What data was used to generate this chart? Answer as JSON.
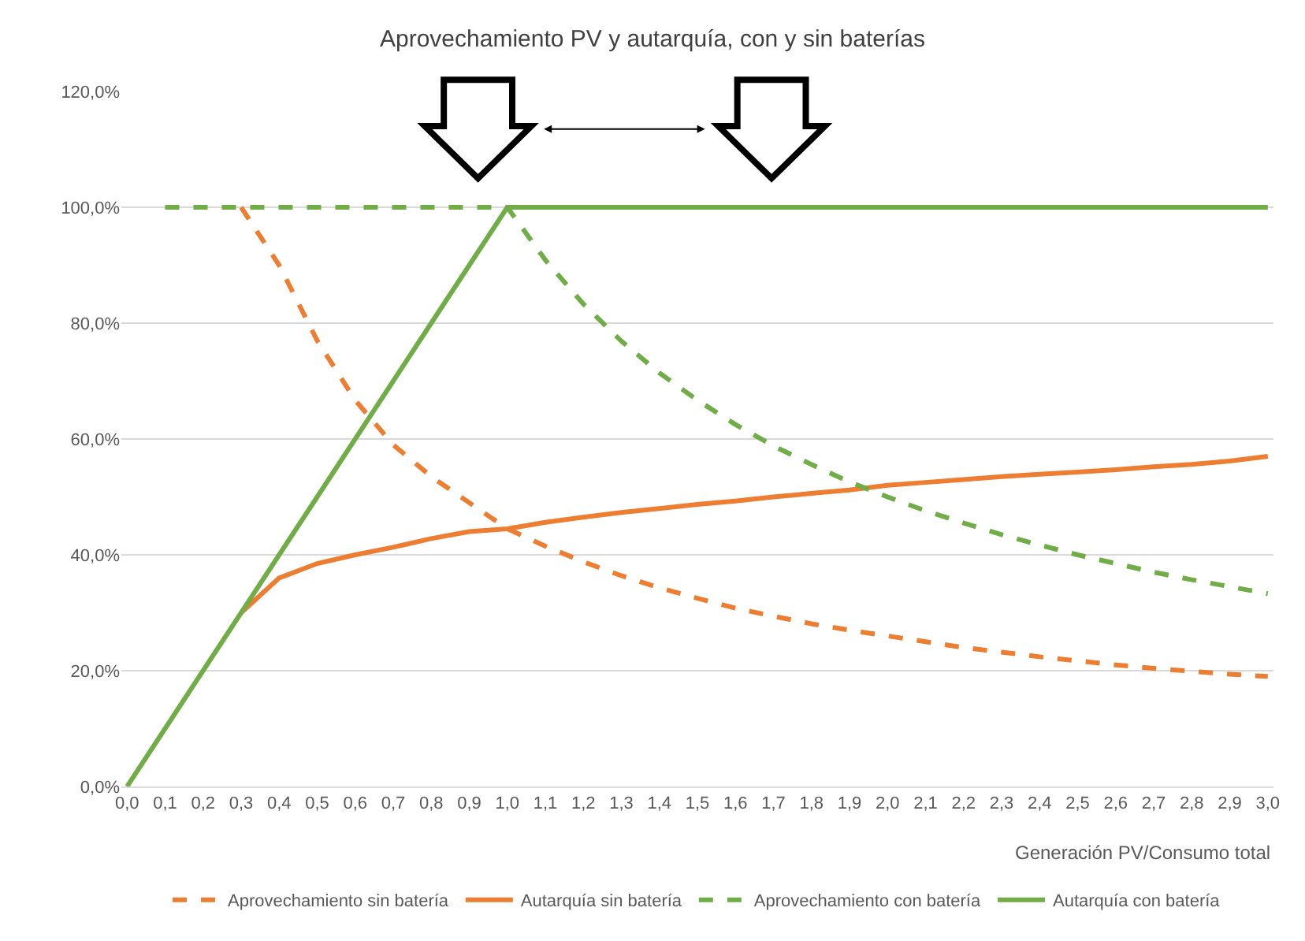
{
  "chart_data": {
    "type": "line",
    "title": "Aprovechamiento PV y autarquía, con y sin baterías",
    "xlabel": "Generación PV/Consumo total",
    "categories": [
      "0,0",
      "0,1",
      "0,2",
      "0,3",
      "0,4",
      "0,5",
      "0,6",
      "0,7",
      "0,8",
      "0,9",
      "1,0",
      "1,1",
      "1,2",
      "1,3",
      "1,4",
      "1,5",
      "1,6",
      "1,7",
      "1,8",
      "1,9",
      "2,0",
      "2,1",
      "2,2",
      "2,3",
      "2,4",
      "2,5",
      "2,6",
      "2,7",
      "2,8",
      "2,9",
      "3,0"
    ],
    "series": [
      {
        "name": "Aprovechamiento sin batería",
        "color": "#ed7d31",
        "line_style": "dashed",
        "values": [
          null,
          null,
          null,
          100,
          90,
          77,
          66.7,
          59,
          53.5,
          49,
          44.5,
          41.5,
          38.8,
          36.4,
          34.3,
          32.5,
          30.8,
          29.4,
          28.1,
          27,
          26,
          25,
          24,
          23.2,
          22.4,
          21.7,
          21,
          20.4,
          19.9,
          19.4,
          19
        ]
      },
      {
        "name": "Autarquía sin batería",
        "color": "#ed7d31",
        "line_style": "solid",
        "values": [
          null,
          null,
          null,
          30,
          36,
          38.5,
          40,
          41.3,
          42.8,
          44,
          44.5,
          45.6,
          46.5,
          47.3,
          48,
          48.7,
          49.3,
          50,
          50.6,
          51.2,
          52,
          52.5,
          53,
          53.5,
          53.9,
          54.3,
          54.7,
          55.2,
          55.6,
          56.2,
          57
        ]
      },
      {
        "name": "Aprovechamiento con batería",
        "color": "#70ad47",
        "line_style": "dashed",
        "values": [
          null,
          100,
          100,
          100,
          100,
          100,
          100,
          100,
          100,
          100,
          100,
          90.9,
          83.3,
          76.9,
          71.4,
          66.7,
          62.5,
          58.8,
          55.6,
          52.6,
          50,
          47.6,
          45.5,
          43.5,
          41.7,
          40,
          38.5,
          37,
          35.7,
          34.5,
          33.3
        ]
      },
      {
        "name": "Autarquía con batería",
        "color": "#70ad47",
        "line_style": "solid",
        "values": [
          0,
          10,
          20,
          30,
          40,
          50,
          60,
          70,
          80,
          90,
          100,
          100,
          100,
          100,
          100,
          100,
          100,
          100,
          100,
          100,
          100,
          100,
          100,
          100,
          100,
          100,
          100,
          100,
          100,
          100,
          100
        ]
      }
    ],
    "ylim": [
      0,
      120
    ],
    "yticks": [
      {
        "value": 0,
        "label": "0,0%"
      },
      {
        "value": 20,
        "label": "20,0%"
      },
      {
        "value": 40,
        "label": "40,0%"
      },
      {
        "value": 60,
        "label": "60,0%"
      },
      {
        "value": 80,
        "label": "80,0%"
      },
      {
        "value": 100,
        "label": "100,0%"
      },
      {
        "value": 120,
        "label": "120,0%"
      }
    ],
    "grid": "y",
    "legend": "bottom",
    "marker": "none"
  }
}
